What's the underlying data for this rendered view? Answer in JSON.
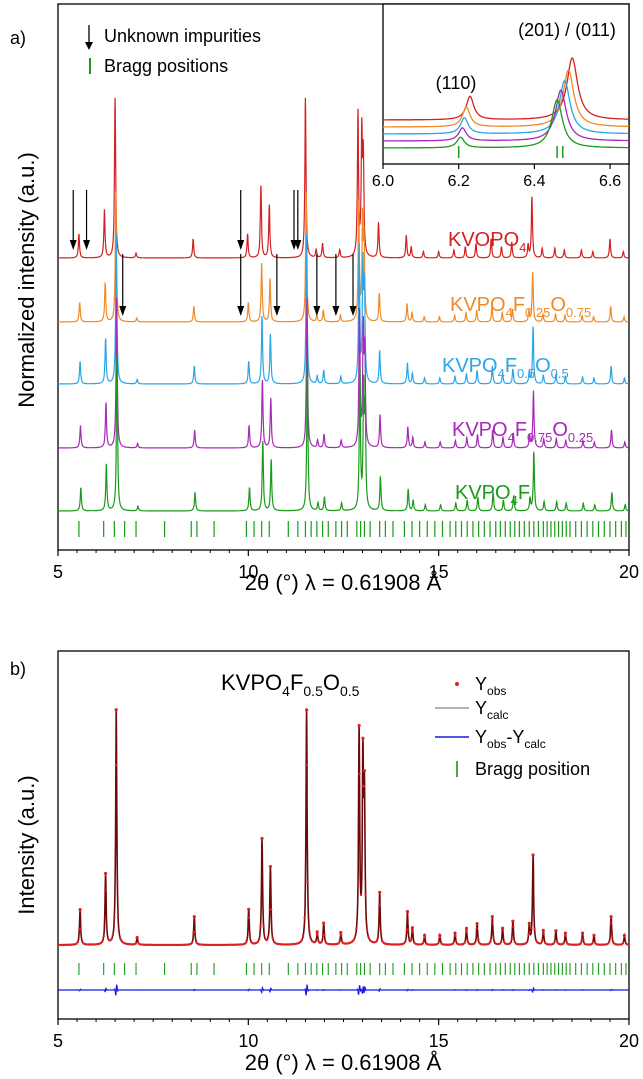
{
  "chart_data": [
    {
      "panel": "a)",
      "type": "line",
      "xlabel": "2θ (°) λ = 0.61908 Å",
      "ylabel": "Normalized intensity (a.u.)",
      "xlim": [
        5,
        20
      ],
      "xticks": [
        5,
        10,
        15,
        20
      ],
      "legend": [
        {
          "symbol": "arrow",
          "label": "Unknown impurities"
        },
        {
          "symbol": "bar",
          "label": "Bragg positions",
          "color": "#1a9a1a"
        }
      ],
      "series": [
        {
          "name": "KVOPO4",
          "base": "KVOPO",
          "sub": "4",
          "color": "#d42020",
          "shift": 0.0
        },
        {
          "name": "KVPO4F0.25O0.75",
          "base": "KVPO",
          "sub": "4",
          "tail": [
            [
              "F",
              "0.25"
            ],
            [
              "O",
              "0.75"
            ]
          ],
          "color": "#f08a28",
          "shift": 0.02
        },
        {
          "name": "KVPO4F0.5O0.5",
          "base": "KVPO",
          "sub": "4",
          "tail": [
            [
              "F",
              "0.5"
            ],
            [
              "O",
              "0.5"
            ]
          ],
          "color": "#2aa6e6",
          "shift": 0.03
        },
        {
          "name": "KVPO4F0.75O0.25",
          "base": "KVPO",
          "sub": "4",
          "tail": [
            [
              "F",
              "0.75"
            ],
            [
              "O",
              "0.25"
            ]
          ],
          "color": "#a62ab6",
          "shift": 0.04
        },
        {
          "name": "KVPO4F",
          "base": "KVPO",
          "sub": "4",
          "tail": [
            [
              "F",
              ""
            ]
          ],
          "color": "#1a9a1a",
          "shift": 0.05
        }
      ],
      "peaks": [
        [
          5.55,
          0.15
        ],
        [
          6.22,
          0.3
        ],
        [
          6.5,
          1.0
        ],
        [
          7.05,
          0.03
        ],
        [
          8.55,
          0.12
        ],
        [
          9.98,
          0.15
        ],
        [
          10.33,
          0.45
        ],
        [
          10.55,
          0.33
        ],
        [
          11.5,
          1.0
        ],
        [
          11.78,
          0.05
        ],
        [
          11.95,
          0.09
        ],
        [
          12.4,
          0.05
        ],
        [
          12.88,
          0.9
        ],
        [
          12.98,
          0.75
        ],
        [
          13.02,
          0.6
        ],
        [
          13.42,
          0.22
        ],
        [
          14.15,
          0.14
        ],
        [
          14.28,
          0.07
        ],
        [
          14.6,
          0.04
        ],
        [
          15.0,
          0.04
        ],
        [
          15.4,
          0.05
        ],
        [
          15.7,
          0.07
        ],
        [
          15.98,
          0.09
        ],
        [
          16.38,
          0.12
        ],
        [
          16.65,
          0.07
        ],
        [
          16.92,
          0.1
        ],
        [
          17.35,
          0.08
        ],
        [
          17.45,
          0.38
        ],
        [
          17.72,
          0.06
        ],
        [
          18.05,
          0.06
        ],
        [
          18.3,
          0.05
        ],
        [
          18.75,
          0.05
        ],
        [
          19.05,
          0.04
        ],
        [
          19.5,
          0.12
        ],
        [
          19.85,
          0.04
        ]
      ],
      "impurity_arrows": [
        {
          "series": "KVOPO4",
          "x": [
            5.4,
            5.75,
            9.8,
            11.2,
            11.3
          ]
        },
        {
          "series": "KVPO4F0.25O0.75",
          "x": [
            6.7,
            9.8,
            10.75,
            11.8,
            12.3,
            12.75
          ]
        }
      ],
      "bragg_positions": [
        5.55,
        6.2,
        6.48,
        6.75,
        7.05,
        7.8,
        8.5,
        8.65,
        9.1,
        9.95,
        10.15,
        10.35,
        10.55,
        11.05,
        11.3,
        11.5,
        11.65,
        11.8,
        11.95,
        12.1,
        12.3,
        12.45,
        12.6,
        12.85,
        12.95,
        13.05,
        13.2,
        13.45,
        13.6,
        13.8,
        14.1,
        14.3,
        14.5,
        14.7,
        14.9,
        15.1,
        15.3,
        15.45,
        15.6,
        15.75,
        15.9,
        16.05,
        16.2,
        16.35,
        16.5,
        16.62,
        16.75,
        16.88,
        17.0,
        17.12,
        17.25,
        17.38,
        17.5,
        17.62,
        17.75,
        17.85,
        17.95,
        18.05,
        18.15,
        18.25,
        18.35,
        18.45,
        18.6,
        18.75,
        18.9,
        19.05,
        19.2,
        19.35,
        19.5,
        19.65,
        19.8,
        19.92
      ],
      "inset": {
        "xlim": [
          6.0,
          6.65
        ],
        "xticks": [
          6.0,
          6.2,
          6.4,
          6.6
        ],
        "xticklabels": [
          "6.0",
          "6.2",
          "6.4",
          "6.6"
        ],
        "annotations": [
          "(110)",
          "(201) / (011)"
        ],
        "peaks": [
          {
            "name": "KVOPO4",
            "p110": 6.23,
            "h110": 0.38,
            "p201": 6.5,
            "h201": 1.0
          },
          {
            "name": "KVPO4F0.25O0.75",
            "p110": 6.22,
            "h110": 0.32,
            "p201": 6.49,
            "h201": 0.92
          },
          {
            "name": "KVPO4F0.5O0.5",
            "p110": 6.215,
            "h110": 0.26,
            "p201": 6.48,
            "h201": 0.86
          },
          {
            "name": "KVPO4F0.75O0.25",
            "p110": 6.21,
            "h110": 0.21,
            "p201": 6.47,
            "h201": 0.82
          },
          {
            "name": "KVPO4F",
            "p110": 6.205,
            "h110": 0.17,
            "p201": 6.46,
            "h201": 0.78
          }
        ],
        "bragg_positions": [
          6.2,
          6.46,
          6.475
        ]
      }
    },
    {
      "panel": "b)",
      "type": "line",
      "title": "KVPO4F0.5O0.5",
      "title_base": "KVPO",
      "title_parts": [
        [
          "4",
          ""
        ],
        [
          "F",
          "0.5"
        ],
        [
          "O",
          "0.5"
        ]
      ],
      "xlabel": "2θ (°) λ = 0.61908 Å",
      "ylabel": "Intensity (a.u.)",
      "xlim": [
        5,
        20
      ],
      "xticks": [
        5,
        10,
        15,
        20
      ],
      "legend": [
        {
          "symbol": "dot",
          "color": "#e02020",
          "main": "Y",
          "sub": "obs"
        },
        {
          "symbol": "line",
          "color": "#999999",
          "main": "Y",
          "sub": "calc"
        },
        {
          "symbol": "line",
          "color": "#1a1ae0",
          "main": "Y",
          "sub": "obs",
          "mid": "-Y",
          "sub2": "calc"
        },
        {
          "symbol": "bar",
          "color": "#1a9a1a",
          "main": "Bragg position"
        }
      ],
      "colors": {
        "obs": "#e02020",
        "calc": "#6e0a0a",
        "diff": "#1a1ae0",
        "bragg": "#1a9a1a"
      }
    }
  ]
}
